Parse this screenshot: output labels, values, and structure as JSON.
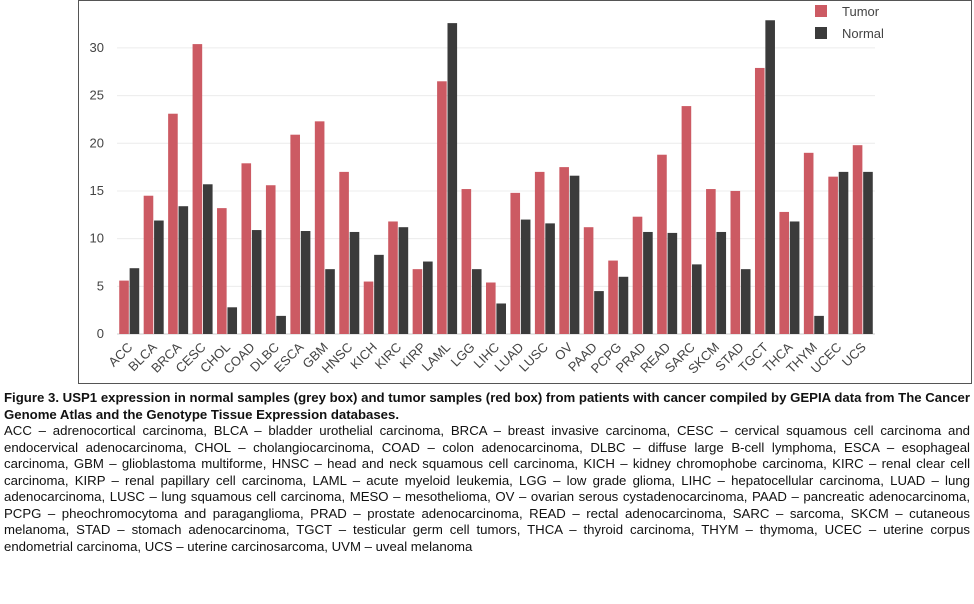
{
  "chart_data": {
    "type": "bar",
    "categories": [
      "ACC",
      "BLCA",
      "BRCA",
      "CESC",
      "CHOL",
      "COAD",
      "DLBC",
      "ESCA",
      "GBM",
      "HNSC",
      "KICH",
      "KIRC",
      "KIRP",
      "LAML",
      "LGG",
      "LIHC",
      "LUAD",
      "LUSC",
      "OV",
      "PAAD",
      "PCPG",
      "PRAD",
      "READ",
      "SARC",
      "SKCM",
      "STAD",
      "TGCT",
      "THCA",
      "THYM",
      "UCEC",
      "UCS"
    ],
    "series": [
      {
        "name": "Tumor",
        "color": "#cc5a63",
        "values": [
          5.6,
          14.5,
          23.1,
          30.4,
          13.2,
          17.9,
          15.6,
          20.9,
          22.3,
          17.0,
          5.5,
          11.8,
          6.8,
          26.5,
          15.2,
          5.4,
          14.8,
          17.0,
          17.5,
          11.2,
          7.7,
          12.3,
          18.8,
          23.9,
          15.2,
          15.0,
          27.9,
          12.8,
          19.0,
          16.5,
          19.8
        ]
      },
      {
        "name": "Normal",
        "color": "#3b3b3b",
        "values": [
          6.9,
          11.9,
          13.4,
          15.7,
          2.8,
          10.9,
          1.9,
          10.8,
          6.8,
          10.7,
          8.3,
          11.2,
          7.6,
          32.6,
          6.8,
          3.2,
          12.0,
          11.6,
          16.6,
          4.5,
          6.0,
          10.7,
          10.6,
          7.3,
          10.7,
          6.8,
          32.9,
          11.8,
          1.9,
          17.0,
          17.0
        ]
      }
    ],
    "yticks": [
      0,
      5,
      10,
      15,
      20,
      25,
      30
    ],
    "ylim": [
      0,
      34.5
    ],
    "grid": true,
    "legend_position": "top-right"
  },
  "caption": {
    "title": "Figure 3. USP1 expression in normal samples (grey box) and tumor samples (red box) from patients with cancer compiled by GEPIA data from The Cancer Genome Atlas and the Genotype Tissue Expression databases.",
    "body": "ACC – adrenocortical carcinoma, BLCA – bladder urothelial carcinoma, BRCA – breast invasive carcinoma, CESC – cervical squamous cell carcinoma and endocervical adenocarcinoma, CHOL – cholangiocarcinoma, COAD – colon adenocarcinoma, DLBC – diffuse large B-cell lymphoma, ESCA – esophageal carcinoma, GBM – glioblastoma multiforme, HNSC – head and neck squamous cell carcinoma, KICH – kidney chromophobe carcinoma, KIRC – renal clear cell carcinoma, KIRP – renal papillary cell carcinoma, LAML – acute myeloid leukemia, LGG – low grade glioma, LIHC – hepatocellular carcinoma, LUAD – lung adenocarcinoma, LUSC – lung squamous cell carcinoma, MESO – mesothelioma, OV – ovarian serous cystadenocarcinoma, PAAD – pancreatic adenocarcinoma, PCPG – pheochromocytoma and paraganglioma, PRAD – prostate adenocarcinoma, READ – rectal adenocarcinoma, SARC – sarcoma, SKCM – cutaneous melanoma, STAD – stomach adenocarcinoma, TGCT – testicular germ cell tumors, THCA – thyroid carcinoma, THYM – thymoma, UCEC – uterine corpus endometrial carcinoma, UCS – uterine carcinosarcoma, UVM – uveal melanoma"
  }
}
